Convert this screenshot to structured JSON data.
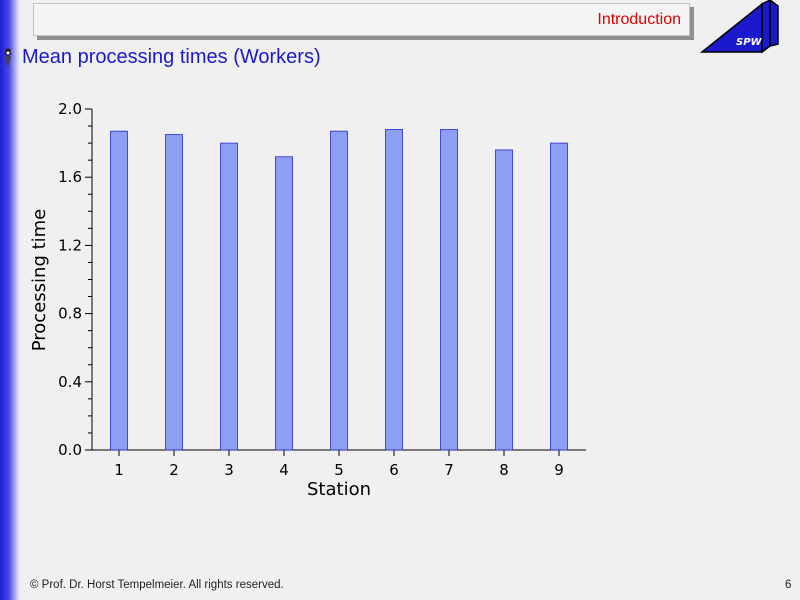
{
  "header": {
    "section_label": "Introduction",
    "logo_text": "SPW",
    "slide_title": "Mean processing times (Workers)"
  },
  "footer": {
    "copyright": "© Prof. Dr. Horst Tempelmeier. All rights reserved.",
    "page_number": "6"
  },
  "colors": {
    "bar_fill": "#8c9ff2",
    "bar_stroke": "#2a2ad0",
    "title_color": "#1a1acc",
    "section_color": "#e00000"
  },
  "chart_data": {
    "type": "bar",
    "categories": [
      "1",
      "2",
      "3",
      "4",
      "5",
      "6",
      "7",
      "8",
      "9"
    ],
    "values": [
      1.87,
      1.85,
      1.8,
      1.72,
      1.87,
      1.88,
      1.88,
      1.76,
      1.8
    ],
    "xlabel": "Station",
    "ylabel": "Processing time",
    "ylim": [
      0,
      2.0
    ],
    "yticks": [
      "0.0",
      "0.4",
      "0.8",
      "1.2",
      "1.6",
      "2.0"
    ],
    "grid": false,
    "legend": "none"
  }
}
